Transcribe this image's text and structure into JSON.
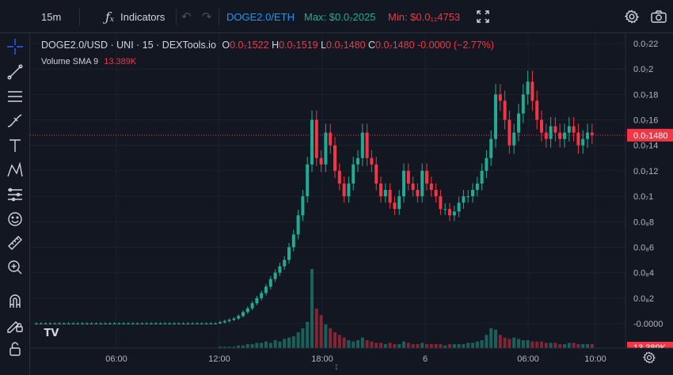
{
  "toolbar": {
    "interval": "15m",
    "indicators_label": "Indicators",
    "pair_link": "DOGE2.0/ETH",
    "max_label": "Max: $0.0₇2025",
    "min_label": "Min: $0.0₁₁4753"
  },
  "legend": {
    "symbol": "DOGE2.0/USD · UNI · 15 · DEXTools.io",
    "open_label": "O",
    "open": "0.0₇1522",
    "high_label": "H",
    "high": "0.0₇1519",
    "low_label": "L",
    "low": "0.0₇1480",
    "close_label": "C",
    "close": "0.0₇1480",
    "change": "-0.0000 (−2.77%)",
    "volume_label": "Volume SMA 9",
    "volume_value": "13.389K"
  },
  "left_tools": [
    {
      "name": "crosshair-icon"
    },
    {
      "name": "trend-line-icon"
    },
    {
      "name": "horizontal-lines-icon"
    },
    {
      "name": "brush-icon"
    },
    {
      "name": "text-icon"
    },
    {
      "name": "pattern-icon"
    },
    {
      "name": "forecast-icon"
    },
    {
      "name": "emoji-icon"
    },
    {
      "name": "ruler-icon"
    },
    {
      "name": "zoom-in-icon"
    },
    {
      "name": "magnet-icon"
    },
    {
      "name": "lock-drawing-icon"
    },
    {
      "name": "unlock-icon"
    }
  ],
  "chart_data": {
    "type": "candlestick",
    "price_axis_labels": [
      "0.0₇22",
      "0.0₇2",
      "0.0₇18",
      "0.0₇16",
      "0.0₇14",
      "0.0₇12",
      "0.0₇1",
      "0.0₈8",
      "0.0₈6",
      "0.0₈4",
      "0.0₈2",
      "-0.0000"
    ],
    "price_axis_values": [
      0.22,
      0.2,
      0.18,
      0.16,
      0.14,
      0.12,
      0.1,
      0.08,
      0.06,
      0.04,
      0.02,
      0.0
    ],
    "time_axis_labels": [
      "06:00",
      "12:00",
      "18:00",
      "6",
      "06:00",
      "10:00"
    ],
    "current_price_label": "0.0₇1480",
    "current_price": 0.148,
    "volume_badge": "13.389K",
    "colors": {
      "up": "#22ab94",
      "down": "#f23645",
      "line": "#f23645"
    },
    "candles_close": [
      0.0,
      0.0,
      0.0,
      0.0,
      0.0,
      0.0,
      0.0,
      0.0,
      0.0,
      0.0,
      0.0,
      0.0,
      0.0,
      0.0,
      0.0,
      0.0,
      0.0,
      0.0,
      0.0,
      0.0,
      0.0,
      0.0,
      0.0,
      0.0,
      0.0,
      0.0,
      0.0,
      0.0,
      0.0,
      0.0,
      0.0,
      0.0,
      0.0,
      0.0,
      0.0,
      0.0,
      0.0,
      0.0,
      0.0,
      0.0,
      0.001,
      0.002,
      0.003,
      0.004,
      0.006,
      0.009,
      0.012,
      0.016,
      0.02,
      0.024,
      0.029,
      0.035,
      0.04,
      0.045,
      0.05,
      0.06,
      0.07,
      0.085,
      0.1,
      0.125,
      0.16,
      0.13,
      0.125,
      0.15,
      0.14,
      0.12,
      0.11,
      0.1,
      0.11,
      0.125,
      0.13,
      0.15,
      0.13,
      0.125,
      0.11,
      0.1,
      0.105,
      0.095,
      0.09,
      0.1,
      0.12,
      0.11,
      0.105,
      0.1,
      0.12,
      0.11,
      0.105,
      0.1,
      0.09,
      0.09,
      0.085,
      0.088,
      0.095,
      0.1,
      0.1,
      0.105,
      0.11,
      0.12,
      0.13,
      0.145,
      0.18,
      0.175,
      0.16,
      0.14,
      0.15,
      0.165,
      0.18,
      0.19,
      0.175,
      0.16,
      0.15,
      0.145,
      0.155,
      0.15,
      0.145,
      0.15,
      0.155,
      0.15,
      0.14,
      0.145,
      0.15,
      0.148
    ],
    "volume_values": [
      0,
      0,
      0,
      0,
      0,
      0,
      0,
      0,
      0,
      0,
      0,
      0,
      0,
      0,
      0,
      0,
      0,
      0,
      0,
      0,
      0,
      0,
      0,
      0,
      0,
      0,
      0,
      0,
      0,
      0,
      0,
      0,
      0,
      0,
      0,
      0,
      0,
      0,
      0,
      0,
      1,
      1,
      1,
      1,
      2,
      2,
      3,
      3,
      4,
      4,
      5,
      4,
      6,
      5,
      7,
      8,
      9,
      12,
      15,
      20,
      60,
      30,
      25,
      18,
      15,
      12,
      10,
      8,
      6,
      5,
      6,
      8,
      6,
      5,
      4,
      4,
      3,
      4,
      3,
      3,
      5,
      4,
      3,
      3,
      4,
      3,
      3,
      3,
      3,
      2,
      3,
      3,
      3,
      3,
      4,
      4,
      5,
      6,
      10,
      15,
      14,
      10,
      8,
      7,
      8,
      7,
      6,
      6,
      5,
      5,
      5,
      4,
      4,
      4,
      3,
      3,
      4,
      4,
      3,
      3,
      3,
      3
    ]
  }
}
